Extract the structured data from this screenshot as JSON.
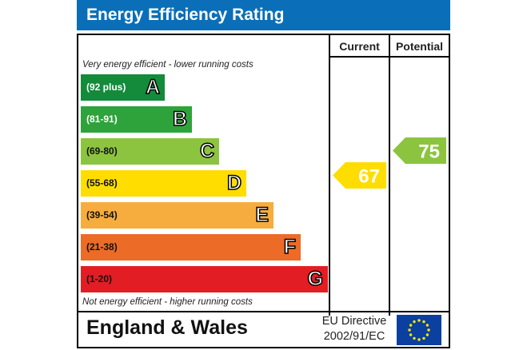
{
  "title": "Energy Efficiency Rating",
  "columns": {
    "current": "Current",
    "potential": "Potential"
  },
  "top_caption": "Very energy efficient - lower running costs",
  "bottom_caption": "Not energy efficient - higher running costs",
  "footer": {
    "region": "England & Wales",
    "directive_line1": "EU Directive",
    "directive_line2": "2002/91/EC"
  },
  "colors": {
    "title_bar": "#0a6fb8",
    "eu_flag": "#0b3fa0",
    "eu_stars": "#ffe600"
  },
  "chart_data": {
    "type": "bar",
    "title": "Energy Efficiency Rating",
    "categories": [
      "A",
      "B",
      "C",
      "D",
      "E",
      "F",
      "G"
    ],
    "bands": [
      {
        "letter": "A",
        "range": "(92 plus)",
        "color": "#138b3a",
        "text_color": "#ffffff"
      },
      {
        "letter": "B",
        "range": "(81-91)",
        "color": "#2ea33b",
        "text_color": "#ffffff"
      },
      {
        "letter": "C",
        "range": "(69-80)",
        "color": "#8cc43f",
        "text_color": "#111111"
      },
      {
        "letter": "D",
        "range": "(55-68)",
        "color": "#ffdd00",
        "text_color": "#111111"
      },
      {
        "letter": "E",
        "range": "(39-54)",
        "color": "#f7ad3e",
        "text_color": "#111111"
      },
      {
        "letter": "F",
        "range": "(21-38)",
        "color": "#ec6b27",
        "text_color": "#111111"
      },
      {
        "letter": "G",
        "range": "(1-20)",
        "color": "#e31d24",
        "text_color": "#111111"
      }
    ],
    "current": {
      "value": 67,
      "band": "D",
      "color": "#ffdd00"
    },
    "potential": {
      "value": 75,
      "band": "C",
      "color": "#8cc43f"
    }
  }
}
